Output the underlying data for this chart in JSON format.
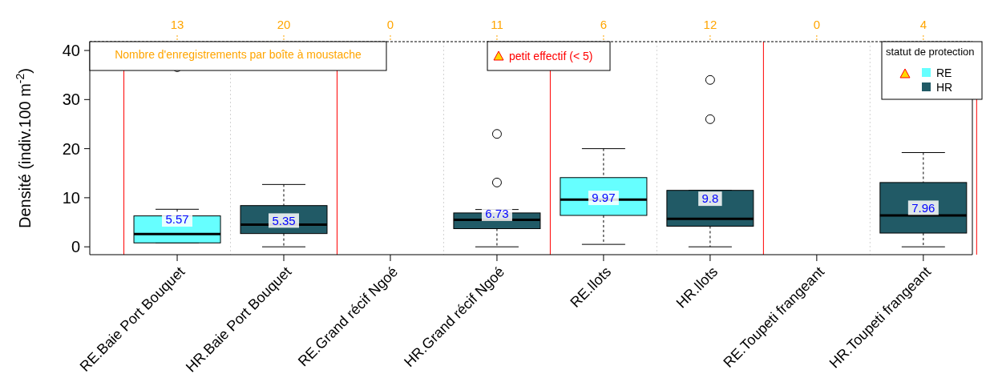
{
  "chart_data": {
    "type": "box",
    "ylabel": "Densité  (indiv.100 m$^{-2}$)",
    "legend_title": "statut de protection",
    "legend": "top right",
    "categories": [
      "RE.Baie Port Bouquet",
      "HR.Baie Port Bouquet",
      "RE.Grand récif Ngoé",
      "HR.Grand récif Ngoé",
      "RE.Ilots",
      "HR.Ilots",
      "RE.Toupeti frangeant",
      "HR.Toupeti frangeant"
    ],
    "ylim": [
      -1.6,
      41.8
    ],
    "yticks": [
      0,
      10,
      20,
      30,
      40
    ],
    "series": [
      {
        "name": "RE",
        "color": "#66ffff",
        "boxes": [
          {
            "low": 0.8,
            "q1": 0.8,
            "median": 2.6,
            "q3": 6.3,
            "high": 7.65,
            "outliers": [
              36.6
            ]
          },
          null,
          null,
          null,
          {
            "low": 0.5,
            "q1": 6.4,
            "median": 9.6,
            "q3": 14.1,
            "high": 20.0
          },
          null,
          null,
          null
        ]
      },
      {
        "name": "HR",
        "color": "#215a66",
        "boxes": [
          null,
          {
            "low": 0,
            "q1": 2.7,
            "median": 4.5,
            "q3": 8.4,
            "high": 12.7
          },
          null,
          {
            "low": 0,
            "q1": 3.7,
            "median": 5.5,
            "q3": 6.9,
            "high": 7.6,
            "outliers": [
              23.0,
              13.1
            ]
          },
          null,
          {
            "low": 0,
            "q1": 4.2,
            "median": 5.7,
            "q3": 11.5,
            "high": 11.5,
            "outliers": [
              34.0,
              26.0
            ]
          },
          null,
          {
            "low": 0,
            "q1": 2.8,
            "median": 6.4,
            "q3": 13.1,
            "high": 19.2
          }
        ]
      }
    ],
    "annotations": [
      "Nombre d'enregistrements par boîte à moustache",
      "petit effectif (< 5)",
      "13",
      "20",
      "0",
      "11",
      "6",
      "12",
      "0",
      "4",
      "5.57",
      "5.35",
      "6.73",
      "9.97",
      "9.8",
      "7.96"
    ]
  }
}
